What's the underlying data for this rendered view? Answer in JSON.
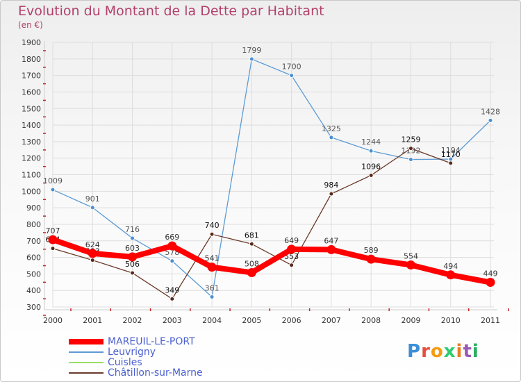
{
  "header": {
    "title": "Evolution du Montant de la Dette par Habitant",
    "subtitle": "(en €)"
  },
  "logo_text": "Proxiti",
  "colors": {
    "title": "#b2406b",
    "axis": "#cc2222",
    "grid": "#dddddd",
    "legend_text": "#4a5fd0"
  },
  "chart_data": {
    "type": "line",
    "title": "Evolution du Montant de la Dette par Habitant",
    "ylabel": "(en €)",
    "x": [
      "2000",
      "2001",
      "2002",
      "2003",
      "2004",
      "2005",
      "2006",
      "2007",
      "2008",
      "2009",
      "2010",
      "2011"
    ],
    "ylim": [
      300,
      1900
    ],
    "yticks": [
      300,
      400,
      500,
      600,
      700,
      800,
      900,
      1000,
      1100,
      1200,
      1300,
      1400,
      1500,
      1600,
      1700,
      1800,
      1900
    ],
    "grid": true,
    "legend_position": "bottom-left",
    "series": [
      {
        "name": "MAREUIL-LE-PORT",
        "color": "#ff0000",
        "values": [
          707,
          624,
          603,
          669,
          541,
          508,
          649,
          647,
          589,
          554,
          494,
          449
        ]
      },
      {
        "name": "Leuvrigny",
        "color": "#5b9bd5",
        "values": [
          1009,
          901,
          716,
          578,
          361,
          1799,
          1700,
          1325,
          1244,
          1192,
          1194,
          1428
        ]
      },
      {
        "name": "Cuisles",
        "color": "#99dd66",
        "values": [
          null,
          null,
          null,
          null,
          null,
          null,
          null,
          null,
          null,
          null,
          null,
          null
        ]
      },
      {
        "name": "Châtillon-sur-Marne",
        "color": "#6b3a2a",
        "values": [
          654,
          583,
          506,
          349,
          740,
          681,
          553,
          984,
          1096,
          1259,
          1170,
          null
        ]
      }
    ]
  }
}
